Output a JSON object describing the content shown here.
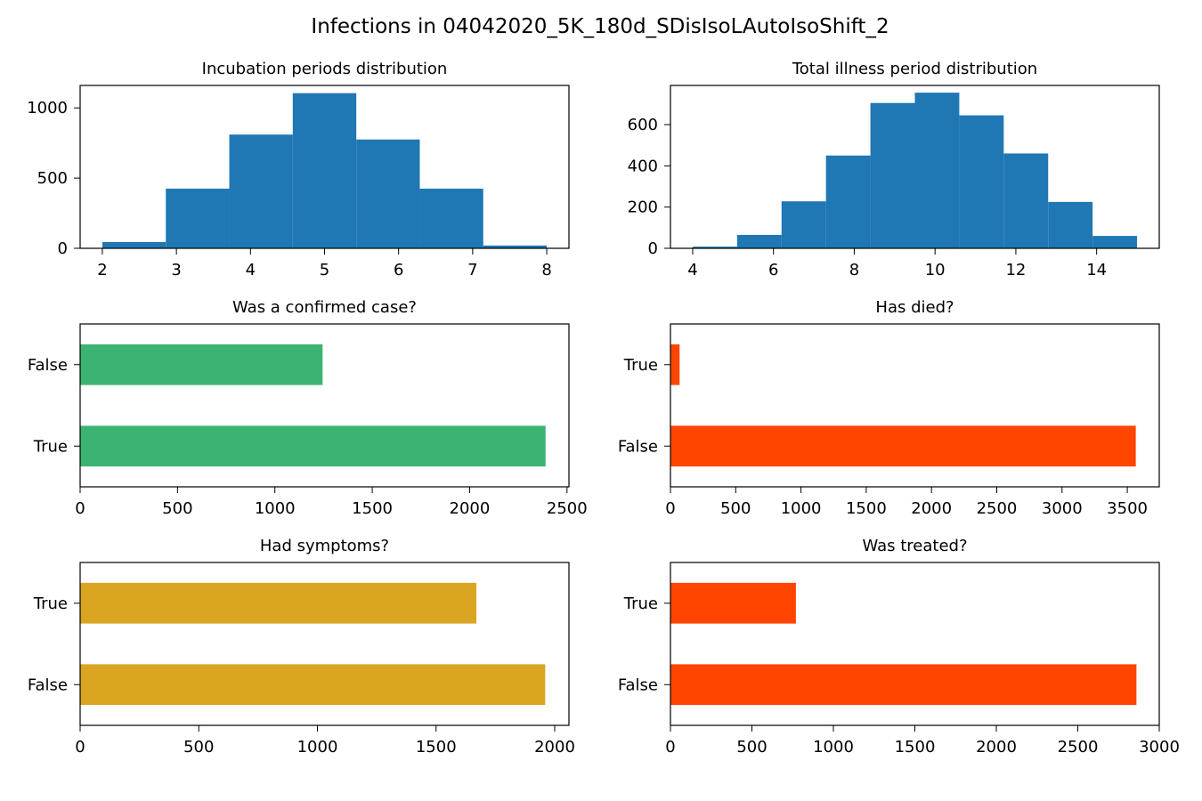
{
  "figure": {
    "title": "Infections in 04042020_5K_180d_SDisIsoLAutoIsoShift_2"
  },
  "chart_data": [
    {
      "type": "bar",
      "subtype": "histogram",
      "title": "Incubation periods distribution",
      "bin_edges": [
        2,
        2.857,
        3.714,
        4.571,
        5.429,
        6.286,
        7.143,
        8
      ],
      "values": [
        45,
        425,
        810,
        1105,
        775,
        425,
        20
      ],
      "xlim": [
        1.7,
        8.3
      ],
      "ylim": [
        0,
        1160
      ],
      "xticks": [
        2,
        3,
        4,
        5,
        6,
        7,
        8
      ],
      "yticks": [
        0,
        500,
        1000
      ],
      "color": "#1f77b4"
    },
    {
      "type": "bar",
      "subtype": "histogram",
      "title": "Total illness period distribution",
      "bin_edges": [
        4,
        5.1,
        6.2,
        7.3,
        8.4,
        9.5,
        10.6,
        11.7,
        12.8,
        13.9,
        15
      ],
      "values": [
        8,
        65,
        228,
        450,
        705,
        755,
        645,
        460,
        225,
        60
      ],
      "xlim": [
        3.45,
        15.55
      ],
      "ylim": [
        0,
        790
      ],
      "xticks": [
        4,
        6,
        8,
        10,
        12,
        14
      ],
      "yticks": [
        0,
        200,
        400,
        600
      ],
      "color": "#1f77b4"
    },
    {
      "type": "bar",
      "orientation": "horizontal",
      "title": "Was a confirmed case?",
      "categories": [
        "True",
        "False"
      ],
      "values": [
        2390,
        1245
      ],
      "xlim": [
        0,
        2510
      ],
      "xticks": [
        0,
        500,
        1000,
        1500,
        2000,
        2500
      ],
      "color": "#3cb371"
    },
    {
      "type": "bar",
      "orientation": "horizontal",
      "title": "Has died?",
      "categories": [
        "False",
        "True"
      ],
      "values": [
        3565,
        70
      ],
      "xlim": [
        0,
        3745
      ],
      "xticks": [
        0,
        500,
        1000,
        1500,
        2000,
        2500,
        3000,
        3500
      ],
      "color": "#ff4500"
    },
    {
      "type": "bar",
      "orientation": "horizontal",
      "title": "Had symptoms?",
      "categories": [
        "False",
        "True"
      ],
      "values": [
        1960,
        1670
      ],
      "xlim": [
        0,
        2060
      ],
      "xticks": [
        0,
        500,
        1000,
        1500,
        2000
      ],
      "color": "#daa520"
    },
    {
      "type": "bar",
      "orientation": "horizontal",
      "title": "Was treated?",
      "categories": [
        "False",
        "True"
      ],
      "values": [
        2860,
        770
      ],
      "xlim": [
        0,
        3000
      ],
      "xticks": [
        0,
        500,
        1000,
        1500,
        2000,
        2500,
        3000
      ],
      "color": "#ff4500"
    }
  ]
}
